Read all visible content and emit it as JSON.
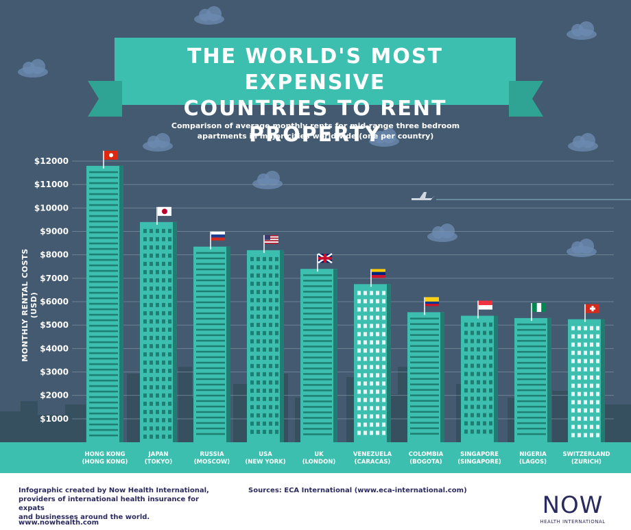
{
  "title_line1": "THE WORLD'S MOST EXPENSIVE",
  "title_line2": "COUNTRIES TO RENT PROPERTY",
  "subtitle_line1": "Comparison of average monthly rents for mid-range three bedroom",
  "subtitle_line2": "apartments in major cities worldwide (one per country)",
  "footer": {
    "credit_line1": "Infographic created by Now Health International,",
    "credit_line2": "providers of international health insurance for expats",
    "credit_line3": "and businesses around the world.",
    "website": "www.nowhealth.com",
    "sources": "Sources: ECA International (www.eca-international.com)",
    "logo_text": "NOW",
    "logo_sub": "HEALTH INTERNATIONAL"
  },
  "colors": {
    "sky": "#435a70",
    "teal": "#3cbfae",
    "dark_teal": "#1e7e73",
    "window": "#e8f7f5",
    "skyline": "#37505f"
  },
  "chart_data": {
    "type": "bar",
    "title": "THE WORLD'S MOST EXPENSIVE COUNTRIES TO RENT PROPERTY",
    "ylabel": "MONTHLY RENTAL COSTS (USD)",
    "xlabel": "",
    "ylim": [
      0,
      12000
    ],
    "y_ticks": [
      "$1000",
      "$2000",
      "$3000",
      "$4000",
      "$5000",
      "$6000",
      "$7000",
      "$8000",
      "$9000",
      "$10000",
      "$11000",
      "$12000"
    ],
    "y_tick_values": [
      1000,
      2000,
      3000,
      4000,
      5000,
      6000,
      7000,
      8000,
      9000,
      10000,
      11000,
      12000
    ],
    "grid": true,
    "categories": [
      {
        "country": "HONG KONG",
        "city": "(HONG KONG)",
        "flag": "hong-kong-flag"
      },
      {
        "country": "JAPAN",
        "city": "(TOKYO)",
        "flag": "japan-flag"
      },
      {
        "country": "RUSSIA",
        "city": "(MOSCOW)",
        "flag": "russia-flag"
      },
      {
        "country": "USA",
        "city": "(NEW YORK)",
        "flag": "usa-flag"
      },
      {
        "country": "UK",
        "city": "(LONDON)",
        "flag": "uk-flag"
      },
      {
        "country": "VENEZUELA",
        "city": "(CARACAS)",
        "flag": "venezuela-flag"
      },
      {
        "country": "COLOMBIA",
        "city": "(BOGOTA)",
        "flag": "colombia-flag"
      },
      {
        "country": "SINGAPORE",
        "city": "(SINGAPORE)",
        "flag": "singapore-flag"
      },
      {
        "country": "NIGERIA",
        "city": "(LAGOS)",
        "flag": "nigeria-flag"
      },
      {
        "country": "SWITZERLAND",
        "city": "(ZURICH)",
        "flag": "switzerland-flag"
      }
    ],
    "values": [
      11800,
      9400,
      8350,
      8200,
      7400,
      6750,
      5550,
      5400,
      5300,
      5250
    ]
  }
}
